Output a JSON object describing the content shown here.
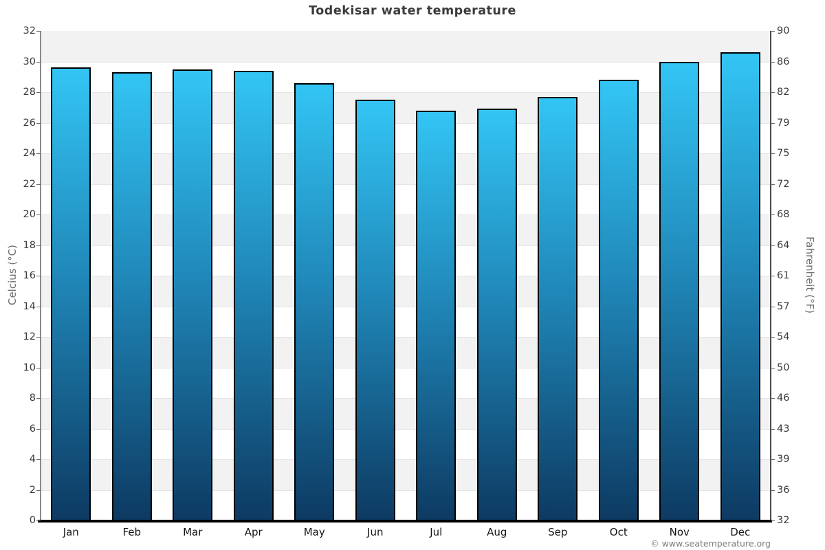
{
  "title": "Todekisar water temperature",
  "footer": {
    "attribution": "© www.seatemperature.org"
  },
  "chart_data": {
    "type": "bar",
    "title": "Todekisar water temperature",
    "categories": [
      "Jan",
      "Feb",
      "Mar",
      "Apr",
      "May",
      "Jun",
      "Jul",
      "Aug",
      "Sep",
      "Oct",
      "Nov",
      "Dec"
    ],
    "values": [
      29.6,
      29.3,
      29.5,
      29.4,
      28.6,
      27.5,
      26.8,
      26.9,
      27.7,
      28.8,
      30.0,
      30.6
    ],
    "series_name": "Water temperature (°C)",
    "ylabel_left": "Celcius (°C)",
    "ylabel_right": "Fahrenheit (°F)",
    "ylim": [
      0,
      32
    ],
    "y_ticks_celsius": [
      32,
      30,
      28,
      26,
      24,
      22,
      20,
      18,
      16,
      14,
      12,
      10,
      8,
      6,
      4,
      2,
      0
    ],
    "y_tick_labels_fahrenheit": [
      "90",
      "86",
      "82",
      "79",
      "75",
      "72",
      "68",
      "64",
      "61",
      "57",
      "54",
      "50",
      "46",
      "43",
      "39",
      "36",
      "32"
    ],
    "grid": "banded",
    "legend": "none",
    "colors": {
      "bar_gradient_top": "#33c5f4",
      "bar_gradient_mid": "#2089ba",
      "bar_gradient_bottom": "#0d3a62",
      "bar_border": "#000000",
      "band_gray": "#f2f2f2",
      "band_white": "#ffffff",
      "axis_x": "#000000",
      "title_text": "#3c3c3c",
      "tick_text": "#3a3a3a",
      "axis_label_text": "#6e6e6e",
      "footer_text": "#7d7d7d"
    }
  }
}
